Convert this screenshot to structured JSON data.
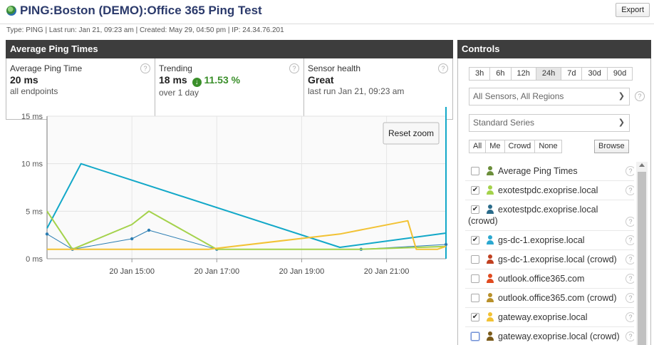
{
  "header": {
    "title": "PING:Boston (DEMO):Office 365 Ping Test",
    "export_label": "Export",
    "meta": "Type: PING | Last run: Jan 21, 09:23 am | Created: May 29, 04:50 pm | IP: 24.34.76.201",
    "icon": "globe-icon"
  },
  "left_panel": {
    "title": "Average Ping Times",
    "stats": [
      {
        "label": "Average Ping Time",
        "value": "20 ms",
        "sub": "all endpoints"
      },
      {
        "label": "Trending",
        "value": "18 ms",
        "trend_pct": "11.53 %",
        "trend_icon": "arrow-down-circle-icon",
        "sub": "over 1 day"
      },
      {
        "label": "Sensor health",
        "value": "Great",
        "sub": "last run Jan 21, 09:23 am"
      }
    ],
    "help_glyph": "?"
  },
  "chart_data": {
    "type": "line",
    "reset_zoom_label": "Reset zoom",
    "y_unit": "ms",
    "ylim": [
      0,
      15
    ],
    "y_ticks": [
      0,
      5,
      10,
      15
    ],
    "y_tick_labels": [
      "0 ms",
      "5 ms",
      "10 ms",
      "15 ms"
    ],
    "xlim": [
      13.0,
      22.4
    ],
    "x_ticks": [
      15,
      17,
      19,
      21
    ],
    "x_tick_labels": [
      "20 Jan 15:00",
      "20 Jan 17:00",
      "20 Jan 19:00",
      "20 Jan 21:00"
    ],
    "grid": true,
    "series": [
      {
        "color": "#12a8c8",
        "width": 2,
        "markers": false,
        "x": [
          13.0,
          13.8,
          19.9,
          22.4
        ],
        "y": [
          3.2,
          10,
          1.2,
          2.7
        ]
      },
      {
        "color": "#2b7db2",
        "width": 1,
        "markers": true,
        "x": [
          13.0,
          13.6,
          15.0,
          15.4,
          17.0,
          20.4,
          22.4
        ],
        "y": [
          2.6,
          1,
          2.1,
          3,
          1,
          1,
          1.5
        ]
      },
      {
        "color": "#a4d24b",
        "width": 2,
        "markers": false,
        "x": [
          13.0,
          13.6,
          15.0,
          15.4,
          17.0,
          20.4,
          22.4
        ],
        "y": [
          5,
          1,
          3.6,
          5,
          1,
          1,
          1.3
        ]
      },
      {
        "color": "#f2c234",
        "width": 2,
        "markers": false,
        "x": [
          13.0,
          16.8,
          19.9,
          21.5,
          21.7,
          22.2,
          22.4
        ],
        "y": [
          1,
          1,
          2.6,
          4,
          1,
          1,
          1.3
        ]
      }
    ]
  },
  "controls": {
    "title": "Controls",
    "ranges": [
      "3h",
      "6h",
      "12h",
      "24h",
      "7d",
      "30d",
      "90d"
    ],
    "active_range": "24h",
    "sensor_select": "All Sensors, All Regions",
    "series_select": "Standard Series",
    "caret": "❯",
    "filters": [
      "All",
      "Me",
      "Crowd",
      "None"
    ],
    "browse_label": "Browse",
    "series": [
      {
        "label": "Average Ping Times",
        "checked": false,
        "color": "#6b8e3a"
      },
      {
        "label": "exotestpdc.exoprise.local",
        "checked": true,
        "color": "#a4d24b"
      },
      {
        "label": "exotestpdc.exoprise.local (crowd)",
        "checked": true,
        "color": "#2a6b8a",
        "two_line": true,
        "line1": "exotestpdc.exoprise.local",
        "line2": "(crowd)"
      },
      {
        "label": "gs-dc-1.exoprise.local",
        "checked": true,
        "color": "#2ba8d0"
      },
      {
        "label": "gs-dc-1.exoprise.local (crowd)",
        "checked": false,
        "color": "#c04020"
      },
      {
        "label": "outlook.office365.com",
        "checked": false,
        "color": "#e04a1f"
      },
      {
        "label": "outlook.office365.com (crowd)",
        "checked": false,
        "color": "#b8902a"
      },
      {
        "label": "gateway.exoprise.local",
        "checked": true,
        "color": "#f2c234"
      },
      {
        "label": "gateway.exoprise.local (crowd)",
        "checked": false,
        "color": "#7a5a1a",
        "focused": true
      }
    ]
  }
}
